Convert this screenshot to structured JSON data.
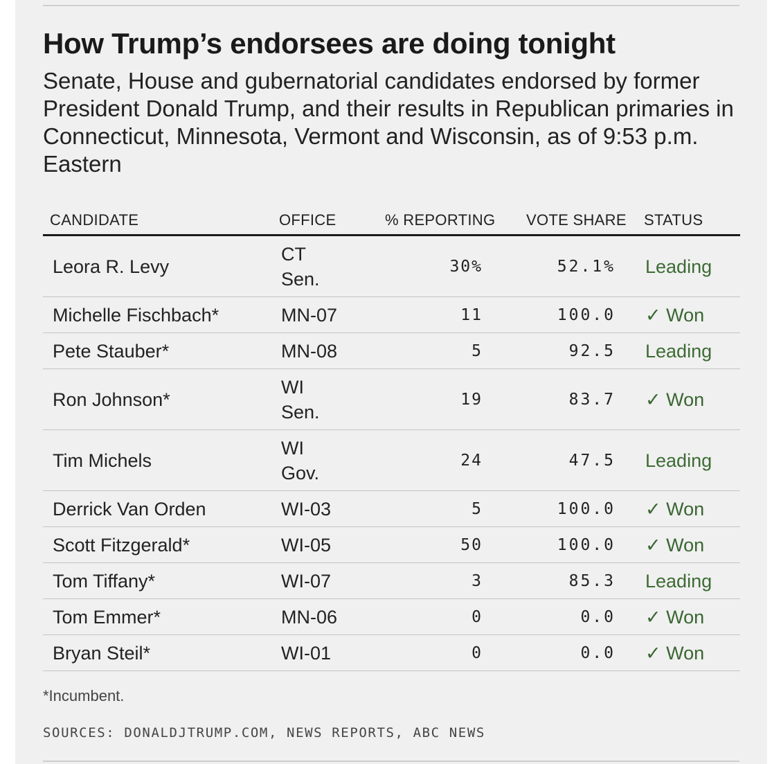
{
  "title": "How Trump’s endorsees are doing tonight",
  "subtitle": "Senate, House and gubernatorial candidates endorsed by former President Donald Trump, and their results in Republican primaries in Connecticut, Minnesota, Vermont and Wisconsin, as of 9:53 p.m. Eastern",
  "table": {
    "headers": {
      "candidate": "CANDIDATE",
      "office": "OFFICE",
      "reporting": "% REPORTING",
      "vote_share": "VOTE SHARE",
      "status": "STATUS"
    },
    "rows": [
      {
        "candidate": "Leora R. Levy",
        "office": "CT Sen.",
        "reporting": "30%",
        "vote_share": "52.1%",
        "status": "Leading"
      },
      {
        "candidate": "Michelle Fischbach*",
        "office": "MN-07",
        "reporting": "11",
        "vote_share": "100.0",
        "status": "✓ Won"
      },
      {
        "candidate": "Pete Stauber*",
        "office": "MN-08",
        "reporting": "5",
        "vote_share": "92.5",
        "status": "Leading"
      },
      {
        "candidate": "Ron Johnson*",
        "office": "WI Sen.",
        "reporting": "19",
        "vote_share": "83.7",
        "status": "✓ Won"
      },
      {
        "candidate": "Tim Michels",
        "office": "WI Gov.",
        "reporting": "24",
        "vote_share": "47.5",
        "status": "Leading"
      },
      {
        "candidate": "Derrick Van Orden",
        "office": "WI-03",
        "reporting": "5",
        "vote_share": "100.0",
        "status": "✓ Won"
      },
      {
        "candidate": "Scott Fitzgerald*",
        "office": "WI-05",
        "reporting": "50",
        "vote_share": "100.0",
        "status": "✓ Won"
      },
      {
        "candidate": "Tom Tiffany*",
        "office": "WI-07",
        "reporting": "3",
        "vote_share": "85.3",
        "status": "Leading"
      },
      {
        "candidate": "Tom Emmer*",
        "office": "MN-06",
        "reporting": "0",
        "vote_share": "0.0",
        "status": "✓ Won"
      },
      {
        "candidate": "Bryan Steil*",
        "office": "WI-01",
        "reporting": "0",
        "vote_share": "0.0",
        "status": "✓ Won"
      }
    ]
  },
  "footnote": "*Incumbent.",
  "sources": "SOURCES: DONALDJTRUMP.COM, NEWS REPORTS, ABC NEWS",
  "colors": {
    "status_green": "#3d6b34",
    "panel_background": "#f0f0f0"
  }
}
